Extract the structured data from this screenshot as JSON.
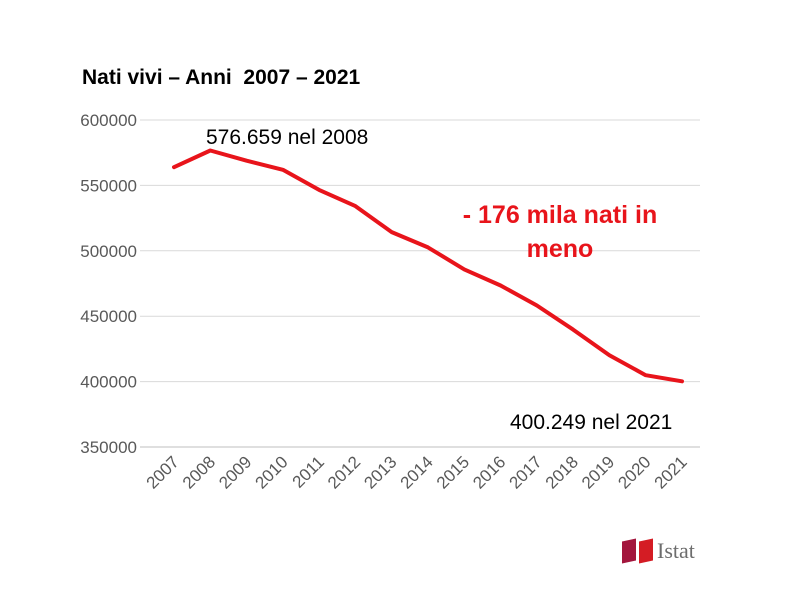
{
  "chart_data": {
    "type": "line",
    "title": "Nati vivi – Anni  2007 – 2021",
    "categories": [
      "2007",
      "2008",
      "2009",
      "2010",
      "2011",
      "2012",
      "2013",
      "2014",
      "2015",
      "2016",
      "2017",
      "2018",
      "2019",
      "2020",
      "2021"
    ],
    "series": [
      {
        "values": [
          563933,
          576659,
          568857,
          561944,
          546585,
          534186,
          514308,
          502596,
          485780,
          473438,
          458151,
          439747,
          420084,
          404892,
          400249
        ],
        "color": "#e8141b"
      }
    ],
    "yticks": [
      "600000",
      "550000",
      "500000",
      "450000",
      "400000",
      "350000"
    ],
    "ylim": [
      350000,
      600000
    ],
    "grid": true,
    "annotations": [
      {
        "text": "576.659 nel 2008"
      },
      {
        "text": "400.249 nel 2021"
      }
    ],
    "callout": "- 176 mila nati in meno",
    "callout_color": "#e8141b"
  },
  "logo": {
    "text": "Istat"
  }
}
